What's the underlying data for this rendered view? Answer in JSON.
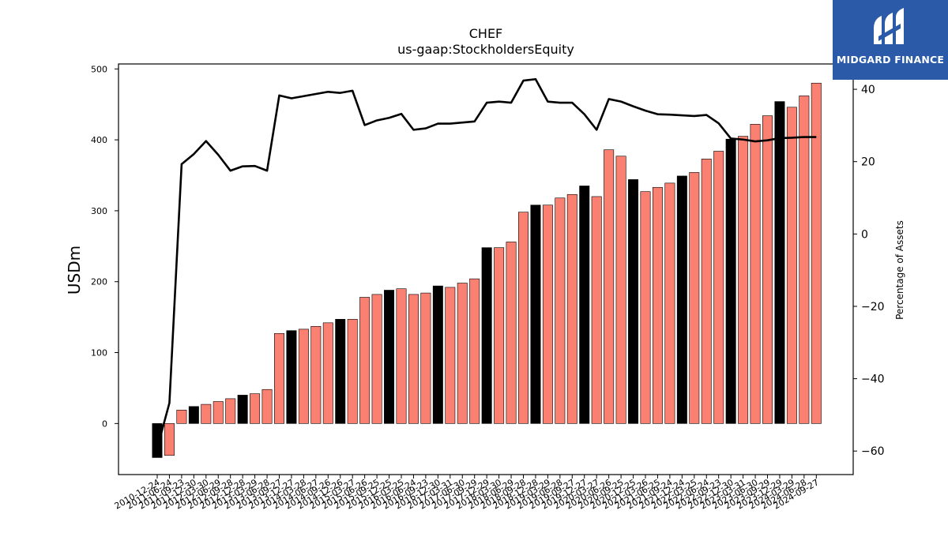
{
  "chart_data": {
    "type": "bar",
    "title": "CHEF",
    "subtitle": "us-gaap:StockholdersEquity",
    "ylabel": "USDm",
    "y2label": "Percentage of Assets",
    "ylim": [
      -72,
      507
    ],
    "y2lim": [
      -66.5,
      47
    ],
    "yticks": [
      0,
      100,
      200,
      300,
      400,
      500
    ],
    "y2ticks": [
      -60,
      -40,
      -20,
      0,
      20,
      40
    ],
    "categories": [
      "2010-12-24",
      "2011-06-24",
      "2011-09-23",
      "2011-12-30",
      "2012-03-30",
      "2012-06-29",
      "2012-09-28",
      "2012-12-28",
      "2013-03-29",
      "2013-06-28",
      "2013-09-27",
      "2013-12-27",
      "2014-03-28",
      "2014-06-27",
      "2014-09-26",
      "2014-12-26",
      "2015-03-27",
      "2015-06-26",
      "2015-09-25",
      "2015-12-25",
      "2016-03-25",
      "2016-06-24",
      "2016-09-23",
      "2016-12-30",
      "2017-03-31",
      "2017-06-30",
      "2017-09-29",
      "2017-12-29",
      "2018-03-30",
      "2018-06-29",
      "2018-09-28",
      "2018-12-28",
      "2019-03-29",
      "2019-06-28",
      "2019-09-27",
      "2019-12-27",
      "2020-03-27",
      "2020-06-26",
      "2020-09-25",
      "2020-12-25",
      "2021-03-26",
      "2021-06-25",
      "2021-09-24",
      "2021-12-24",
      "2022-03-25",
      "2022-06-24",
      "2022-09-23",
      "2022-12-30",
      "2023-03-31",
      "2023-06-30",
      "2023-09-29",
      "2023-12-29",
      "2024-03-29",
      "2024-06-28",
      "2024-09-27"
    ],
    "series": [
      {
        "kind": "bar",
        "values": [
          -48,
          -45,
          19,
          24,
          27,
          31,
          35,
          40,
          42,
          48,
          127,
          131,
          133,
          137,
          142,
          147,
          147,
          178,
          182,
          188,
          190,
          182,
          184,
          194,
          192,
          198,
          204,
          248,
          248,
          256,
          298,
          308,
          308,
          318,
          323,
          335,
          320,
          386,
          377,
          344,
          327,
          333,
          339,
          349,
          354,
          373,
          384,
          401,
          405,
          422,
          434,
          454,
          446,
          462,
          480
        ],
        "colors": [
          "#000000",
          "#fa8072",
          "#fa8072",
          "#000000",
          "#fa8072",
          "#fa8072",
          "#fa8072",
          "#000000",
          "#fa8072",
          "#fa8072",
          "#fa8072",
          "#000000",
          "#fa8072",
          "#fa8072",
          "#fa8072",
          "#000000",
          "#fa8072",
          "#fa8072",
          "#fa8072",
          "#000000",
          "#fa8072",
          "#fa8072",
          "#fa8072",
          "#000000",
          "#fa8072",
          "#fa8072",
          "#fa8072",
          "#000000",
          "#fa8072",
          "#fa8072",
          "#fa8072",
          "#000000",
          "#fa8072",
          "#fa8072",
          "#fa8072",
          "#000000",
          "#fa8072",
          "#fa8072",
          "#fa8072",
          "#000000",
          "#fa8072",
          "#fa8072",
          "#fa8072",
          "#000000",
          "#fa8072",
          "#fa8072",
          "#fa8072",
          "#000000",
          "#fa8072",
          "#fa8072",
          "#fa8072",
          "#000000",
          "#fa8072",
          "#fa8072",
          "#fa8072"
        ]
      },
      {
        "kind": "line",
        "axis": "right",
        "color": "#000000",
        "values": [
          -59.2,
          -46.7,
          19.3,
          22.1,
          25.7,
          21.9,
          17.5,
          18.7,
          18.8,
          17.5,
          38.3,
          37.5,
          38.1,
          38.7,
          39.3,
          39.0,
          39.6,
          30.1,
          31.4,
          32.1,
          33.2,
          28.8,
          29.2,
          30.5,
          30.5,
          30.8,
          31.1,
          36.3,
          36.6,
          36.3,
          42.4,
          42.8,
          36.6,
          36.3,
          36.3,
          33.1,
          28.8,
          37.3,
          36.6,
          35.3,
          34.1,
          33.1,
          33.0,
          32.8,
          32.6,
          32.9,
          30.6,
          26.4,
          26.1,
          25.6,
          25.9,
          26.5,
          26.6,
          26.8,
          26.8
        ]
      }
    ],
    "grid": false,
    "legend": "none"
  },
  "logo": {
    "text": "MIDGARD FINANCE",
    "bg": "#2a5aa8"
  }
}
